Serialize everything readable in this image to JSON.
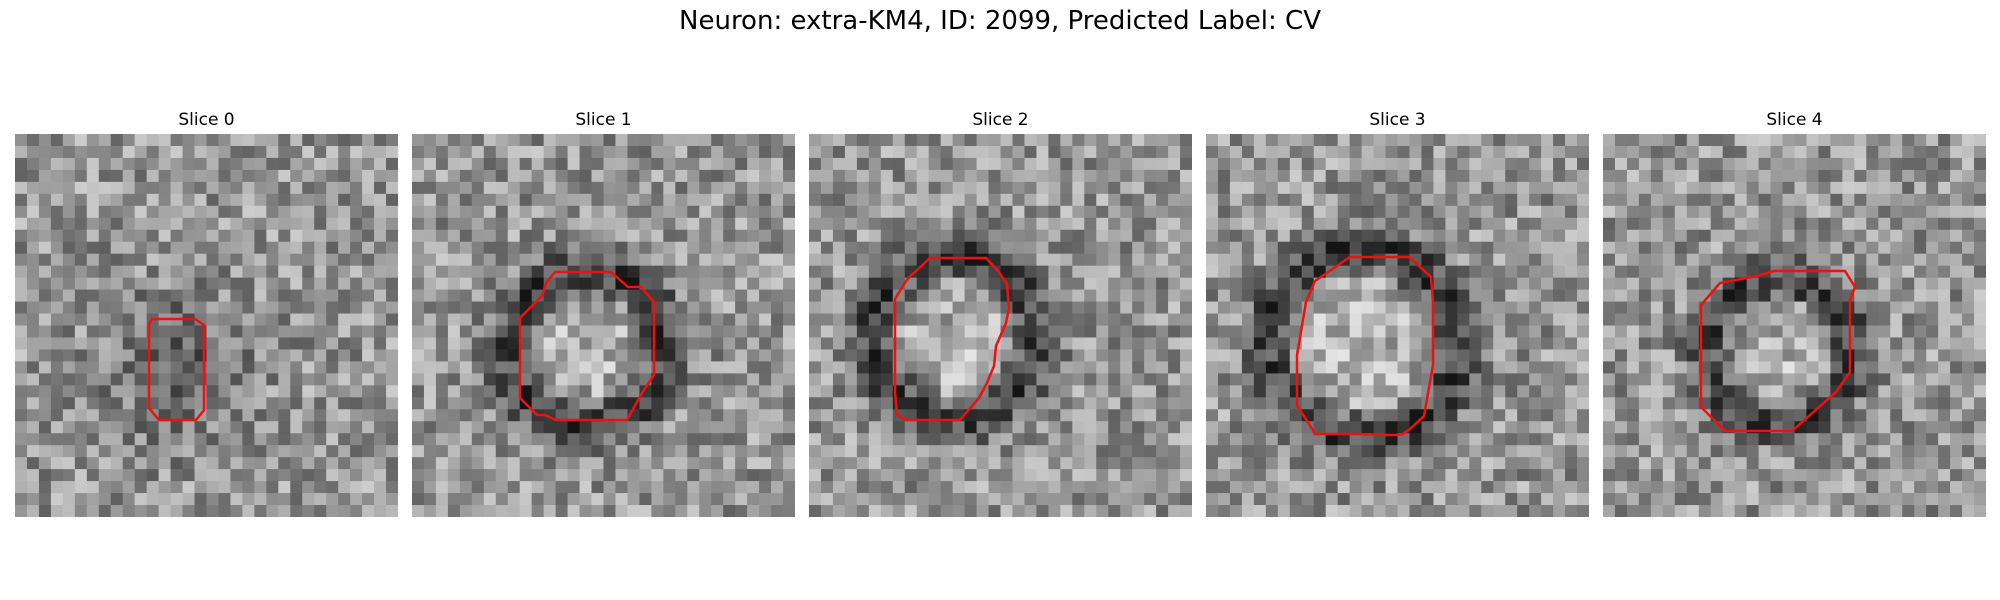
{
  "figure": {
    "title": "Neuron: extra-KM4, ID: 2099, Predicted Label: CV"
  },
  "contour_color": "#ee1111",
  "panels": [
    {
      "title": "Slice 0",
      "dark_ring": false
    },
    {
      "title": "Slice 1",
      "dark_ring": true
    },
    {
      "title": "Slice 2",
      "dark_ring": true
    },
    {
      "title": "Slice 3",
      "dark_ring": true
    },
    {
      "title": "Slice 4",
      "dark_ring": true
    }
  ]
}
